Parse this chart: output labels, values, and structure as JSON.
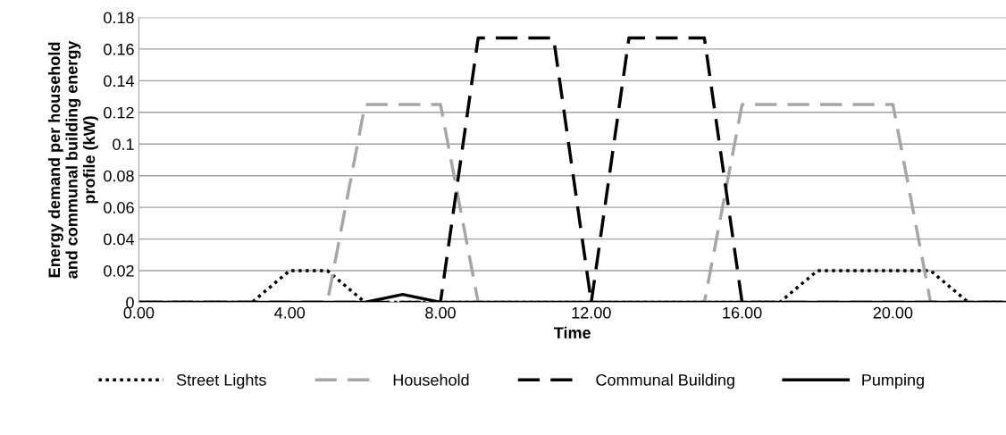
{
  "chart_data": {
    "type": "line",
    "xlabel": "Time",
    "ylabel": "Energy demand per household\nand communal building energy\nprofile (kW)",
    "x": [
      0,
      1,
      2,
      3,
      4,
      5,
      6,
      7,
      8,
      9,
      10,
      11,
      12,
      13,
      14,
      15,
      16,
      17,
      18,
      19,
      20,
      21,
      22,
      23
    ],
    "series": [
      {
        "name": "Street Lights",
        "color": "#000000",
        "line_style": "dotted",
        "values": [
          0,
          0,
          0,
          0,
          0.02,
          0.02,
          0,
          0,
          0,
          0,
          0,
          0,
          0,
          0,
          0,
          0,
          0,
          0,
          0.02,
          0.02,
          0.02,
          0.02,
          0,
          0
        ]
      },
      {
        "name": "Household",
        "color": "#a6a6a6",
        "line_style": "dashed",
        "values": [
          0,
          0,
          0,
          0,
          0,
          0,
          0.125,
          0.125,
          0.125,
          0,
          0,
          0,
          0,
          0,
          0,
          0,
          0.125,
          0.125,
          0.125,
          0.125,
          0.125,
          0,
          0,
          0
        ]
      },
      {
        "name": "Communal Building",
        "color": "#000000",
        "line_style": "dashed",
        "values": [
          0,
          0,
          0,
          0,
          0,
          0,
          0,
          0,
          0,
          0.167,
          0.167,
          0.167,
          0,
          0.167,
          0.167,
          0.167,
          0,
          0,
          0,
          0,
          0,
          0,
          0,
          0
        ]
      },
      {
        "name": "Pumping",
        "color": "#000000",
        "line_style": "solid",
        "values": [
          0,
          0,
          0,
          0,
          0,
          0,
          0,
          0.005,
          0,
          0,
          0,
          0,
          0,
          0,
          0,
          0,
          0,
          0,
          0,
          0,
          0,
          0,
          0,
          0
        ]
      }
    ],
    "xlim": [
      0,
      23
    ],
    "xticks": [
      {
        "value": 0,
        "label": "0.00"
      },
      {
        "value": 4,
        "label": "4.00"
      },
      {
        "value": 8,
        "label": "8.00"
      },
      {
        "value": 12,
        "label": "12.00"
      },
      {
        "value": 16,
        "label": "16.00"
      },
      {
        "value": 20,
        "label": "20.00"
      }
    ],
    "ylim": [
      0,
      0.18
    ],
    "yticks": [
      0,
      0.02,
      0.04,
      0.06,
      0.08,
      0.1,
      0.12,
      0.14,
      0.16,
      0.18
    ],
    "grid": "y",
    "legend": "bottom",
    "marker": "none"
  }
}
